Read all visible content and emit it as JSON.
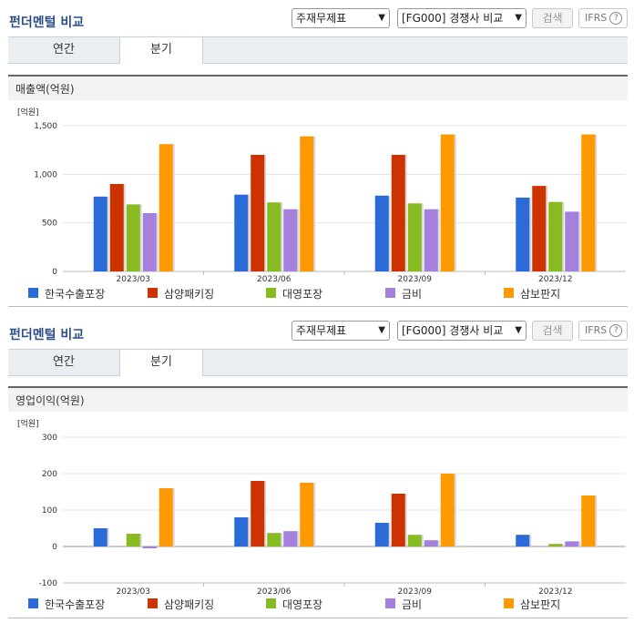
{
  "colors": {
    "series": [
      "#2a6bd8",
      "#cc3300",
      "#88bb22",
      "#a680dd",
      "#ff9900"
    ],
    "title": "#2d4f86"
  },
  "header": {
    "title": "펀더멘털 비교",
    "select_statement": "주재무제표",
    "select_compare": "[FG000] 경쟁사 비교",
    "search_label": "검색",
    "ifrs_label": "IFRS",
    "ifrs_help_icon": "?"
  },
  "tabs": [
    {
      "label": "연간",
      "active": false
    },
    {
      "label": "분기",
      "active": true
    }
  ],
  "legend": [
    "한국수출포장",
    "삼양패키징",
    "대영포장",
    "금비",
    "삼보판지"
  ],
  "chart_data": [
    {
      "type": "bar",
      "title": "매출액(억원)",
      "unit_label": "[억원]",
      "categories": [
        "2023/03",
        "2023/06",
        "2023/09",
        "2023/12"
      ],
      "ylim": [
        0,
        1500
      ],
      "yticks": [
        0,
        500,
        1000,
        1500
      ],
      "ytick_labels": [
        "0",
        "500",
        "1,000",
        "1,500"
      ],
      "grid": true,
      "legend_position": "bottom",
      "series": [
        {
          "name": "한국수출포장",
          "values": [
            770,
            790,
            780,
            760
          ]
        },
        {
          "name": "삼양패키징",
          "values": [
            900,
            1200,
            1200,
            880
          ]
        },
        {
          "name": "대영포장",
          "values": [
            690,
            710,
            700,
            715
          ]
        },
        {
          "name": "금비",
          "values": [
            600,
            640,
            640,
            615
          ]
        },
        {
          "name": "삼보판지",
          "values": [
            1310,
            1390,
            1410,
            1410
          ]
        }
      ]
    },
    {
      "type": "bar",
      "title": "영업이익(억원)",
      "unit_label": "[억원]",
      "categories": [
        "2023/03",
        "2023/06",
        "2023/09",
        "2023/12"
      ],
      "ylim": [
        -100,
        300
      ],
      "yticks": [
        -100,
        0,
        100,
        200,
        300
      ],
      "ytick_labels": [
        "-100",
        "0",
        "100",
        "200",
        "300"
      ],
      "grid": true,
      "legend_position": "bottom",
      "series": [
        {
          "name": "한국수출포장",
          "values": [
            50,
            80,
            65,
            32
          ]
        },
        {
          "name": "삼양패키징",
          "values": [
            null,
            180,
            145,
            null
          ]
        },
        {
          "name": "대영포장",
          "values": [
            35,
            37,
            32,
            7
          ]
        },
        {
          "name": "금비",
          "values": [
            -5,
            42,
            17,
            14
          ]
        },
        {
          "name": "삼보판지",
          "values": [
            160,
            175,
            200,
            140
          ]
        }
      ]
    }
  ]
}
